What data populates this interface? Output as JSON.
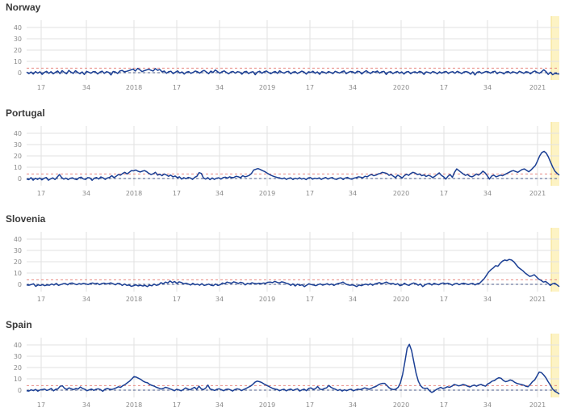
{
  "chart_data": [
    {
      "type": "line",
      "title": "Norway",
      "yticks": [
        40,
        30,
        20,
        10,
        0
      ],
      "xtick_labels": [
        "17",
        "34",
        "2018",
        "17",
        "34",
        "2019",
        "17",
        "34",
        "2020",
        "17",
        "34",
        "2021"
      ],
      "ylim": [
        -5,
        45
      ],
      "baseline": 0,
      "threshold": 4,
      "grid": true,
      "highlight_last_weeks": true,
      "series": [
        {
          "values": [
            0.5,
            -0.8,
            0.6,
            -1.2,
            1.0,
            -0.4,
            0.8,
            -1.5,
            0.3,
            1.2,
            -0.6,
            0.9,
            -1.0,
            0.4,
            1.5,
            -0.8,
            1.8,
            0.2,
            -1.0,
            2.0,
            0.5,
            -0.6,
            1.8,
            0.3,
            -0.9,
            0.7,
            -1.6,
            1.2,
            0.4,
            -0.5,
            1.0,
            0.8,
            -1.1,
            0.5,
            1.4,
            -0.6,
            0.9,
            0.3,
            -2.0,
            1.1,
            0.6,
            -0.7,
            1.5,
            2.0,
            0.8,
            1.2,
            1.8,
            2.5,
            3.2,
            1.5,
            3.8,
            2.6,
            0.9,
            1.8,
            2.4,
            3.0,
            2.2,
            1.5,
            3.6,
            2.1,
            2.8,
            0.8,
            1.5,
            -0.5,
            0.9,
            1.3,
            -0.8,
            0.4,
            1.6,
            -0.3,
            0.7,
            -1.2,
            0.5,
            1.0,
            -0.6,
            0.3,
            1.5,
            0.8,
            -0.4,
            1.2,
            2.0,
            0.6,
            -0.9,
            1.4,
            0.2,
            2.4,
            1.0,
            -0.5,
            0.8,
            1.6,
            0.3,
            -1.0,
            0.6,
            1.1,
            -0.4,
            0.9,
            0.5,
            -1.3,
            0.7,
            1.2,
            -0.8,
            0.4,
            0.9,
            -1.8,
            0.6,
            1.3,
            -0.5,
            0.8,
            1.5,
            0.2,
            -0.9,
            0.4,
            1.1,
            -0.6,
            1.7,
            0.3,
            -0.4,
            0.8,
            1.2,
            -1.0,
            0.5,
            0.9,
            -0.7,
            0.3,
            1.4,
            0.6,
            -1.2,
            0.8,
            0.2,
            1.3,
            -0.5,
            0.7,
            -1.4,
            0.9,
            0.4,
            -0.6,
            1.0,
            0.2,
            -0.8,
            1.2,
            0.5,
            -0.3,
            0.8,
            1.6,
            -0.9,
            0.4,
            1.1,
            0.7,
            -0.5,
            1.3,
            0.9,
            -1.1,
            0.6,
            1.8,
            0.3,
            -0.7,
            1.0,
            0.5,
            1.5,
            -0.4,
            0.8,
            1.2,
            -1.6,
            0.5,
            0.9,
            -0.8,
            0.3,
            1.1,
            -0.5,
            0.7,
            -1.2,
            0.6,
            1.0,
            -0.9,
            0.4,
            0.8,
            -0.3,
            1.2,
            0.5,
            -1.5,
            0.7,
            0.3,
            -0.6,
            1.0,
            0.4,
            -1.0,
            0.8,
            -0.4,
            0.6,
            1.1,
            -0.7,
            0.5,
            0.9,
            -0.5,
            1.2,
            0.3,
            -0.8,
            0.6,
            1.0,
            0.4,
            -1.3,
            0.7,
            -2.0,
            0.5,
            0.9,
            -0.6,
            0.3,
            1.1,
            0.7,
            -0.4,
            0.8,
            1.3,
            -0.9,
            0.5,
            0.2,
            -1.1,
            0.6,
            1.0,
            -0.5,
            0.8,
            0.3,
            -0.7,
            1.2,
            0.4,
            -0.6,
            0.9,
            0.5,
            -1.0,
            0.7,
            1.5,
            0.3,
            -0.5,
            0.8,
            2.6,
            1.0,
            -1.5,
            0.4,
            -1.8,
            -0.6,
            -1.0,
            -1.2
          ]
        }
      ]
    },
    {
      "type": "line",
      "title": "Portugal",
      "yticks": [
        40,
        30,
        20,
        10,
        0
      ],
      "xtick_labels": [
        "17",
        "34",
        "2018",
        "17",
        "34",
        "2019",
        "17",
        "34",
        "2020",
        "17",
        "34",
        "2021"
      ],
      "ylim": [
        -5,
        45
      ],
      "baseline": 0,
      "threshold": 4,
      "grid": true,
      "highlight_last_weeks": true,
      "series": [
        {
          "values": [
            -0.5,
            -1.0,
            0.8,
            -1.5,
            0.3,
            -0.8,
            0.5,
            -1.2,
            0.2,
            0.9,
            -1.5,
            -0.3,
            0.6,
            -0.9,
            1.2,
            3.5,
            1.0,
            -0.6,
            0.4,
            -1.0,
            0.2,
            0.6,
            -0.5,
            -1.0,
            0.7,
            1.2,
            -0.4,
            -0.8,
            0.8,
            0.5,
            -1.6,
            0.3,
            0.9,
            -0.5,
            1.4,
            0.6,
            -0.8,
            0.5,
            1.0,
            2.5,
            0.8,
            2.0,
            3.5,
            3.0,
            4.5,
            5.5,
            4.0,
            5.5,
            7.0,
            6.8,
            7.5,
            6.5,
            5.8,
            6.5,
            7.0,
            6.0,
            4.5,
            3.5,
            4.2,
            5.5,
            3.0,
            3.8,
            2.5,
            4.0,
            3.2,
            2.0,
            3.0,
            1.5,
            2.2,
            0.8,
            1.5,
            -0.5,
            0.8,
            -0.2,
            1.0,
            0.5,
            -0.8,
            1.0,
            2.0,
            5.2,
            4.5,
            0.5,
            -0.5,
            0.8,
            -1.0,
            0.5,
            -0.8,
            0.3,
            0.6,
            -0.5,
            0.8,
            1.2,
            0.4,
            1.5,
            0.8,
            1.0,
            2.0,
            1.5,
            0.8,
            2.5,
            1.5,
            2.0,
            2.8,
            4.5,
            7.5,
            8.2,
            8.8,
            8.0,
            7.0,
            6.2,
            5.0,
            3.8,
            2.8,
            2.0,
            1.4,
            0.8,
            0.5,
            -0.3,
            0.5,
            -0.8,
            0.2,
            0.6,
            -0.9,
            0.3,
            -0.4,
            0.7,
            -0.5,
            0.2,
            -1.0,
            0.5,
            0.8,
            -0.6,
            0.3,
            -0.2,
            0.6,
            -0.8,
            0.2,
            0.9,
            -0.5,
            0.4,
            0.9,
            -0.4,
            -0.8,
            0.3,
            0.6,
            -0.9,
            0.5,
            1.0,
            -0.2,
            -0.6,
            0.4,
            0.8,
            1.5,
            1.2,
            0.6,
            2.0,
            1.5,
            2.8,
            3.5,
            2.5,
            3.0,
            4.0,
            4.5,
            5.5,
            5.0,
            4.5,
            2.8,
            3.5,
            2.0,
            0.8,
            3.0,
            1.8,
            0.5,
            2.5,
            3.8,
            2.8,
            4.5,
            5.5,
            4.8,
            3.5,
            4.0,
            2.5,
            3.2,
            1.8,
            2.8,
            2.2,
            0.8,
            2.0,
            3.5,
            5.0,
            2.8,
            1.5,
            -0.5,
            2.0,
            3.5,
            1.0,
            5.5,
            8.5,
            7.0,
            5.5,
            4.0,
            2.8,
            3.5,
            2.0,
            1.5,
            2.5,
            4.0,
            3.0,
            4.5,
            6.5,
            5.0,
            2.5,
            -0.5,
            2.2,
            3.0,
            1.5,
            2.2,
            3.0,
            2.5,
            3.5,
            4.5,
            5.5,
            6.5,
            7.0,
            6.2,
            5.5,
            6.8,
            8.0,
            8.5,
            7.2,
            6.0,
            7.5,
            9.5,
            11.5,
            15.5,
            20.0,
            23.0,
            24.0,
            22.5,
            19.0,
            14.5,
            10.0,
            6.5,
            4.5,
            3.0
          ]
        }
      ]
    },
    {
      "type": "line",
      "title": "Slovenia",
      "yticks": [
        40,
        30,
        20,
        10,
        0
      ],
      "xtick_labels": [
        "17",
        "34",
        "2018",
        "17",
        "34",
        "2019",
        "17",
        "34",
        "2020",
        "17",
        "34",
        "2021"
      ],
      "ylim": [
        -5,
        45
      ],
      "baseline": 0,
      "threshold": 4,
      "grid": true,
      "highlight_last_weeks": true,
      "series": [
        {
          "values": [
            -0.5,
            -0.8,
            -0.2,
            0.5,
            -1.8,
            -0.5,
            -1.0,
            -0.3,
            -1.2,
            -0.5,
            -0.8,
            0.3,
            -0.6,
            0.8,
            -0.9,
            -0.2,
            0.5,
            0.7,
            -0.4,
            0.9,
            1.2,
            0.4,
            -0.3,
            0.6,
            0.2,
            0.9,
            0.4,
            -0.2,
            0.8,
            1.2,
            0.5,
            1.0,
            -0.3,
            0.7,
            1.1,
            0.4,
            0.8,
            1.3,
            0.5,
            -0.4,
            0.9,
            0.6,
            -1.0,
            0.3,
            -0.9,
            -0.6,
            -1.8,
            -1.2,
            -0.5,
            -1.4,
            -0.8,
            -1.5,
            -0.9,
            -2.0,
            -0.7,
            -1.3,
            0.2,
            -0.9,
            -0.4,
            1.5,
            0.5,
            2.0,
            1.2,
            3.0,
            1.5,
            2.5,
            0.8,
            2.2,
            1.6,
            0.5,
            1.0,
            0.3,
            -0.6,
            0.9,
            -0.4,
            0.2,
            -0.8,
            0.6,
            -1.0,
            -0.5,
            0.2,
            -0.8,
            -1.2,
            0.3,
            -1.0,
            -0.4,
            1.2,
            0.5,
            2.0,
            1.4,
            1.0,
            2.2,
            1.6,
            0.8,
            1.8,
            1.3,
            -0.5,
            0.9,
            0.4,
            1.4,
            0.8,
            0.5,
            1.0,
            0.6,
            1.2,
            0.9,
            1.8,
            2.0,
            1.5,
            2.6,
            1.8,
            1.2,
            2.2,
            1.8,
            1.0,
            0.5,
            -0.9,
            0.4,
            -1.5,
            0.2,
            -1.0,
            -0.4,
            -2.0,
            -0.8,
            0.5,
            -0.2,
            -0.6,
            -1.2,
            -0.3,
            0.4,
            -0.7,
            -0.2,
            0.6,
            -0.5,
            0.3,
            -1.0,
            0.2,
            0.8,
            1.2,
            2.0,
            0.5,
            -0.4,
            -0.8,
            -0.5,
            -1.0,
            -2.0,
            -0.6,
            -1.2,
            -0.4,
            0.2,
            -0.6,
            0.5,
            -0.8,
            0.4,
            0.9,
            1.5,
            0.6,
            1.2,
            2.0,
            1.0,
            0.5,
            0.8,
            -0.3,
            0.6,
            -1.2,
            -0.6,
            1.0,
            -0.4,
            -0.9,
            0.5,
            1.2,
            0.6,
            -0.8,
            0.3,
            -2.0,
            -0.5,
            0.4,
            0.8,
            -0.6,
            0.9,
            0.2,
            -0.4,
            0.8,
            1.2,
            0.5,
            1.0,
            0.3,
            -0.8,
            0.5,
            0.9,
            -0.3,
            0.6,
            1.0,
            0.4,
            -0.2,
            0.5,
            0.8,
            -0.5,
            0.6,
            1.0,
            3.0,
            5.0,
            8.0,
            11.0,
            13.0,
            14.5,
            16.5,
            16.0,
            18.5,
            20.5,
            21.5,
            21.0,
            22.0,
            21.5,
            20.0,
            17.5,
            15.0,
            13.5,
            12.0,
            10.0,
            8.5,
            7.0,
            7.5,
            8.5,
            6.5,
            4.5,
            3.5,
            2.0,
            2.5,
            1.0,
            -1.0,
            0.5,
            1.0,
            -0.5,
            -2.0
          ]
        }
      ]
    },
    {
      "type": "line",
      "title": "Spain",
      "yticks": [
        40,
        30,
        20,
        10,
        0
      ],
      "xtick_labels": [
        "17",
        "34",
        "2018",
        "17",
        "34",
        "2019",
        "17",
        "34",
        "2020",
        "17",
        "34",
        "2021"
      ],
      "ylim": [
        -5,
        45
      ],
      "baseline": 0,
      "threshold": 4,
      "grid": true,
      "highlight_last_weeks": true,
      "series": [
        {
          "values": [
            -0.5,
            -0.8,
            0.3,
            -0.4,
            0.6,
            -0.9,
            0.2,
            0.5,
            1.0,
            -0.3,
            0.4,
            1.5,
            -0.6,
            0.8,
            1.2,
            3.5,
            3.8,
            1.5,
            0.8,
            2.0,
            1.2,
            0.5,
            1.5,
            1.0,
            2.8,
            1.5,
            0.8,
            -0.5,
            0.3,
            1.0,
            -0.2,
            0.8,
            1.2,
            0.5,
            -1.0,
            0.8,
            1.5,
            0.9,
            0.6,
            1.2,
            2.0,
            3.0,
            2.5,
            4.0,
            5.0,
            6.5,
            8.0,
            10.0,
            12.0,
            11.5,
            10.5,
            9.5,
            8.0,
            7.0,
            6.5,
            5.0,
            4.2,
            3.5,
            2.5,
            1.8,
            1.0,
            1.5,
            2.5,
            2.0,
            1.2,
            0.5,
            -0.5,
            0.8,
            0.3,
            -0.6,
            0.5,
            2.0,
            1.0,
            0.3,
            1.5,
            2.5,
            0.8,
            3.5,
            1.2,
            0.5,
            1.8,
            4.5,
            1.0,
            0.5,
            -0.3,
            0.8,
            1.2,
            0.4,
            -0.5,
            0.6,
            1.0,
            0.3,
            -0.8,
            0.5,
            1.2,
            0.8,
            -0.4,
            0.6,
            1.5,
            2.5,
            3.5,
            5.0,
            7.0,
            8.0,
            7.5,
            6.8,
            5.5,
            4.5,
            3.5,
            2.5,
            1.5,
            1.0,
            0.6,
            -0.5,
            0.3,
            0.8,
            -0.6,
            0.4,
            1.0,
            -0.3,
            0.6,
            1.2,
            -0.8,
            0.2,
            0.9,
            -0.5,
            1.5,
            2.0,
            0.8,
            1.2,
            3.2,
            1.0,
            0.5,
            1.5,
            2.0,
            4.2,
            2.5,
            1.5,
            0.8,
            -0.3,
            0.5,
            -0.8,
            0.3,
            -0.5,
            0.4,
            0.8,
            -0.6,
            0.2,
            0.9,
            0.5,
            1.2,
            2.0,
            1.5,
            0.8,
            1.6,
            2.6,
            3.2,
            4.5,
            5.5,
            6.0,
            6.0,
            4.0,
            2.0,
            1.0,
            0.5,
            1.0,
            2.5,
            6.5,
            14.0,
            25.0,
            37.0,
            40.5,
            35.0,
            25.0,
            15.0,
            8.0,
            4.0,
            2.0,
            1.5,
            1.8,
            -0.5,
            -2.0,
            -1.0,
            0.5,
            1.5,
            2.5,
            1.5,
            2.0,
            3.0,
            2.5,
            3.5,
            5.0,
            4.5,
            3.8,
            4.2,
            5.0,
            4.5,
            3.5,
            2.8,
            3.8,
            4.5,
            3.5,
            4.5,
            5.0,
            4.2,
            3.5,
            5.5,
            6.5,
            8.0,
            8.5,
            10.0,
            11.0,
            10.5,
            8.5,
            7.5,
            8.0,
            9.0,
            8.5,
            7.0,
            6.0,
            5.5,
            5.0,
            4.5,
            3.5,
            3.0,
            5.0,
            7.5,
            9.0,
            12.5,
            16.0,
            15.5,
            13.5,
            11.0,
            7.5,
            4.5,
            1.0,
            -1.0,
            -2.0,
            -3.5
          ]
        }
      ]
    }
  ],
  "style": {
    "line_color": "#1b3f94",
    "baseline_color": "#4a5a8a",
    "threshold_color": "#e88a82",
    "grid_color": "#e2e2e2",
    "highlight_color": "#fdf3c4",
    "highlight_border": "#f4df8a",
    "tick_color": "#8a8a8a",
    "title_color": "#3a3a3a"
  }
}
